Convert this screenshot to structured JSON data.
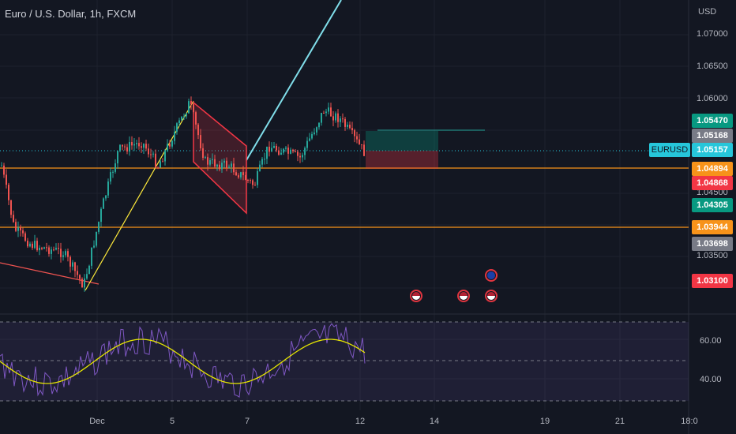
{
  "header": {
    "symbol_title": "Euro / U.S. Dollar, 1h, FXCM",
    "currency": "USD"
  },
  "price_axis": {
    "ticks": [
      "1.07000",
      "1.06500",
      "1.06000",
      "1.04500",
      "1.03500"
    ],
    "badges": [
      {
        "value": "1.05470",
        "color": "#089981"
      },
      {
        "value": "1.05168",
        "color": "#787b86"
      },
      {
        "value": "1.05157",
        "color": "#26c6da"
      },
      {
        "value": "1.04894",
        "color": "#f7931a"
      },
      {
        "value": "1.04868",
        "color": "#f23645"
      },
      {
        "value": "1.04305",
        "color": "#089981"
      },
      {
        "value": "1.03944",
        "color": "#f7931a"
      },
      {
        "value": "1.03698",
        "color": "#787b86"
      },
      {
        "value": "1.03100",
        "color": "#f23645"
      }
    ],
    "symbol_label": "EURUSD"
  },
  "rsi_axis": {
    "ticks": [
      "60.00",
      "40.00"
    ]
  },
  "time_axis": {
    "ticks": [
      "Dec",
      "5",
      "7",
      "12",
      "14",
      "19",
      "21",
      "18:0"
    ]
  },
  "events": [
    {
      "icon": "us-flag-icon",
      "country": "US"
    },
    {
      "icon": "us-flag-icon",
      "country": "US"
    },
    {
      "icon": "eu-flag-icon",
      "country": "EU"
    },
    {
      "icon": "us-flag-icon",
      "country": "US"
    }
  ],
  "colors": {
    "background": "#131722",
    "up_candle": "#26a69a",
    "down_candle": "#ef5350",
    "horizontal_level": "#f7931a",
    "trend_line": "#80deea",
    "rsi_line": "#7e57c2",
    "rsi_ma": "#e6e600"
  }
}
